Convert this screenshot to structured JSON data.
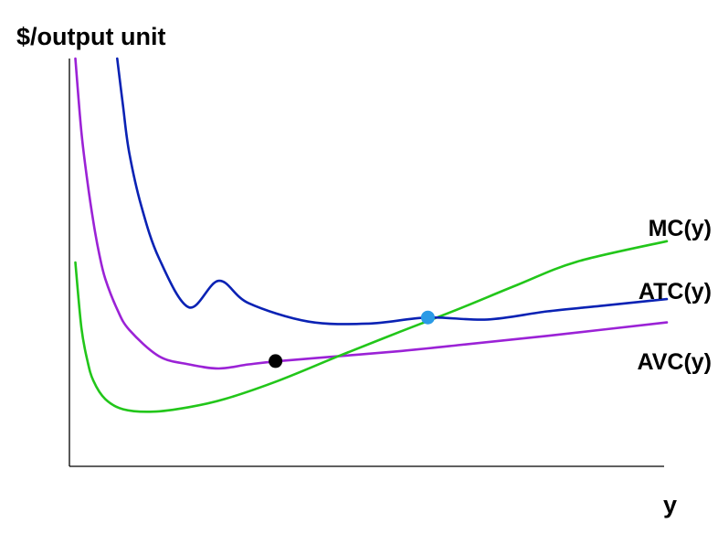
{
  "chart_data": {
    "type": "line",
    "title": "",
    "ylabel": "$/output unit",
    "xlabel": "y",
    "xlim": [
      0,
      100
    ],
    "ylim": [
      0,
      100
    ],
    "grid": false,
    "legend": "none",
    "series": [
      {
        "name": "MC(y)",
        "color": "#22c61a",
        "x": [
          1,
          2,
          3,
          4,
          6,
          9,
          14,
          20,
          26,
          35,
          45,
          55,
          65,
          75,
          85,
          100
        ],
        "y": [
          50.0,
          34.0,
          26.0,
          21.0,
          16.5,
          14.0,
          13.4,
          14.5,
          16.5,
          21.0,
          27.0,
          32.8,
          38.5,
          44.5,
          50.2,
          55.2
        ]
      },
      {
        "name": "ATC(y)",
        "color": "#0a22b4",
        "x": [
          8,
          9,
          10,
          12,
          15,
          20,
          25,
          30,
          40,
          50,
          60,
          70,
          80,
          90,
          100
        ],
        "y": [
          100.0,
          88.0,
          77.0,
          64.0,
          51.0,
          39.0,
          45.5,
          40.0,
          35.5,
          35.0,
          36.5,
          36.0,
          38.0,
          39.5,
          41.0
        ]
      },
      {
        "name": "AVC(y)",
        "color": "#9b22d6",
        "x": [
          1,
          2,
          3,
          4,
          5,
          6,
          8,
          10,
          15,
          20,
          25,
          30,
          35,
          45,
          55,
          65,
          80,
          100
        ],
        "y": [
          100.0,
          82.0,
          70.0,
          60.0,
          52.0,
          46.0,
          38.5,
          33.5,
          27.0,
          25.0,
          24.0,
          25.0,
          25.8,
          27.0,
          28.2,
          29.7,
          32.0,
          35.3
        ]
      }
    ],
    "points": [
      {
        "label": "",
        "x": 34.5,
        "y": 25.8,
        "color": "#000000"
      },
      {
        "label": "",
        "x": 60,
        "y": 36.5,
        "color": "#2a9ae6"
      }
    ]
  }
}
